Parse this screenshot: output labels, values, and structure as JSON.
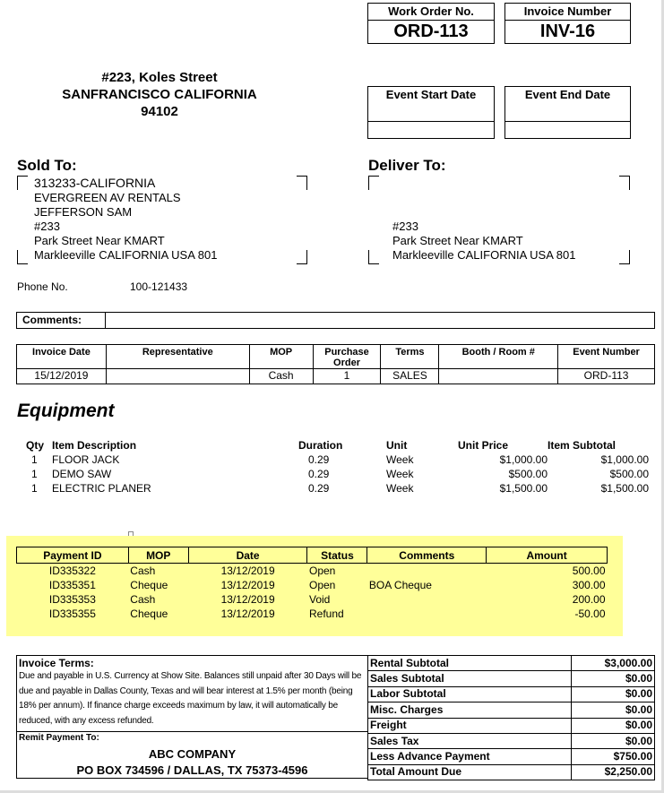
{
  "work_order": {
    "label": "Work Order No.",
    "value": "ORD-113"
  },
  "invoice_number": {
    "label": "Invoice Number",
    "value": "INV-16"
  },
  "event_start": {
    "label": "Event Start Date",
    "value": ""
  },
  "event_end": {
    "label": "Event End Date",
    "value": ""
  },
  "company_address": [
    "#223, Koles Street",
    "SANFRANCISCO CALIFORNIA",
    "94102"
  ],
  "sold_to": {
    "label": "Sold To:",
    "lines": [
      "313233-CALIFORNIA",
      "EVERGREEN AV RENTALS",
      "JEFFERSON SAM",
      "#233",
      "Park Street Near KMART",
      "Markleeville CALIFORNIA  USA 801"
    ]
  },
  "deliver_to": {
    "label": "Deliver To:",
    "lines": [
      "#233",
      "Park Street Near KMART",
      "Markleeville CALIFORNIA  USA 801"
    ]
  },
  "phone": {
    "label": "Phone No.",
    "value": "100-121433"
  },
  "comments": {
    "label": "Comments:",
    "value": ""
  },
  "invoice_info": {
    "headers": [
      "Invoice Date",
      "Representative",
      "MOP",
      "Purchase Order",
      "Terms",
      "Booth / Room #",
      "Event Number"
    ],
    "values": [
      "15/12/2019",
      "",
      "Cash",
      "1",
      "SALES",
      "",
      "ORD-113"
    ]
  },
  "equipment": {
    "title": "Equipment",
    "headers": [
      "Qty",
      "Item Description",
      "Duration",
      "Unit",
      "Unit Price",
      "Item Subtotal"
    ],
    "rows": [
      [
        "1",
        "FLOOR JACK",
        "0.29",
        "Week",
        "$1,000.00",
        "$1,000.00"
      ],
      [
        "1",
        "DEMO SAW",
        "0.29",
        "Week",
        "$500.00",
        "$500.00"
      ],
      [
        "1",
        "ELECTRIC PLANER",
        "0.29",
        "Week",
        "$1,500.00",
        "$1,500.00"
      ]
    ]
  },
  "payments": {
    "highlight_color": "#ffff99",
    "headers": [
      "Payment ID",
      "MOP",
      "Date",
      "Status",
      "Comments",
      "Amount"
    ],
    "rows": [
      [
        "ID335322",
        "Cash",
        "13/12/2019",
        "Open",
        "",
        "500.00"
      ],
      [
        "ID335351",
        "Cheque",
        "13/12/2019",
        "Open",
        "BOA Cheque",
        "300.00"
      ],
      [
        "ID335353",
        "Cash",
        "13/12/2019",
        "Void",
        "",
        "200.00"
      ],
      [
        "ID335355",
        "Cheque",
        "13/12/2019",
        "Refund",
        "",
        "-50.00"
      ]
    ]
  },
  "terms": {
    "label": "Invoice Terms:",
    "text": "Due and payable in U.S. Currency at Show Site. Balances still unpaid after 30 Days will be due and payable in Dallas County, Texas and will bear interest at 1.5% per month (being 18% per annum).    If finance charge exceeds maximum by law, it will automatically be reduced, with any excess refunded.",
    "remit_label": "Remit Payment To:",
    "remit_name": "ABC COMPANY",
    "remit_address": "PO BOX 734596 / DALLAS, TX 75373-4596"
  },
  "totals": [
    [
      "Rental Subtotal",
      "$3,000.00"
    ],
    [
      "Sales Subtotal",
      "$0.00"
    ],
    [
      "Labor Subtotal",
      "$0.00"
    ],
    [
      "Misc. Charges",
      "$0.00"
    ],
    [
      "Freight",
      "$0.00"
    ],
    [
      "Sales Tax",
      "$0.00"
    ],
    [
      "Less Advance Payment",
      "$750.00"
    ],
    [
      "Total Amount Due",
      "$2,250.00"
    ]
  ]
}
